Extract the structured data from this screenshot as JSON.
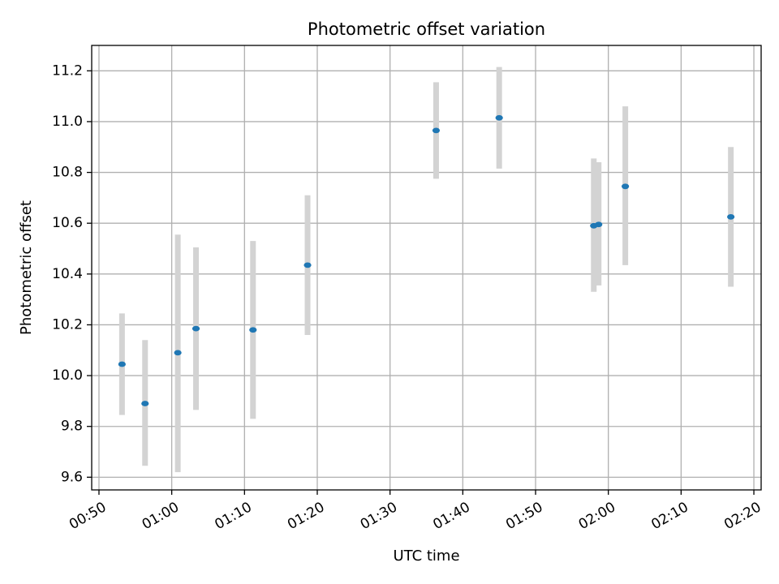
{
  "chart_data": {
    "type": "scatter",
    "title": "Photometric offset variation",
    "xlabel": "UTC time",
    "ylabel": "Photometric offset",
    "grid": true,
    "xlim": [
      "00:49",
      "02:21"
    ],
    "ylim": [
      9.55,
      11.3
    ],
    "x_ticks": [
      "00:50",
      "01:00",
      "01:10",
      "01:20",
      "01:30",
      "01:40",
      "01:50",
      "02:00",
      "02:10",
      "02:20"
    ],
    "y_ticks": [
      "9.6",
      "9.8",
      "10.0",
      "10.2",
      "10.4",
      "10.6",
      "10.8",
      "11.0",
      "11.2"
    ],
    "colors": {
      "point": "#1f77b4",
      "errorbar": "#d3d3d3",
      "grid": "#b0b0b0"
    },
    "points": [
      {
        "x": "00:53:10",
        "y": 10.045,
        "err_low": 9.845,
        "err_high": 10.245
      },
      {
        "x": "00:56:20",
        "y": 9.89,
        "err_low": 9.645,
        "err_high": 10.14
      },
      {
        "x": "01:00:50",
        "y": 10.09,
        "err_low": 9.62,
        "err_high": 10.555
      },
      {
        "x": "01:03:20",
        "y": 10.185,
        "err_low": 9.865,
        "err_high": 10.505
      },
      {
        "x": "01:11:10",
        "y": 10.18,
        "err_low": 9.83,
        "err_high": 10.53
      },
      {
        "x": "01:18:40",
        "y": 10.435,
        "err_low": 10.16,
        "err_high": 10.71
      },
      {
        "x": "01:36:20",
        "y": 10.965,
        "err_low": 10.775,
        "err_high": 11.155
      },
      {
        "x": "01:45:00",
        "y": 11.015,
        "err_low": 10.815,
        "err_high": 11.215
      },
      {
        "x": "01:58:00",
        "y": 10.59,
        "err_low": 10.33,
        "err_high": 10.855
      },
      {
        "x": "01:58:40",
        "y": 10.595,
        "err_low": 10.355,
        "err_high": 10.84
      },
      {
        "x": "02:02:20",
        "y": 10.745,
        "err_low": 10.435,
        "err_high": 11.06
      },
      {
        "x": "02:16:50",
        "y": 10.625,
        "err_low": 10.35,
        "err_high": 10.9
      }
    ]
  }
}
